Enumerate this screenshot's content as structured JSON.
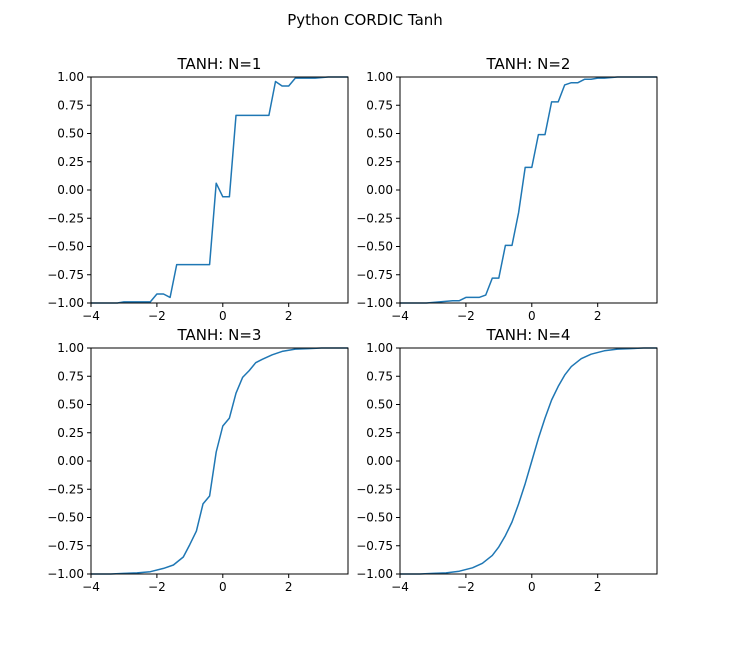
{
  "figure": {
    "title": "Python CORDIC Tanh"
  },
  "colors": {
    "series": "#1f77b4",
    "axes": "#000000",
    "background": "#ffffff"
  },
  "chart_data": [
    {
      "type": "line",
      "title": "TANH: N=1",
      "xlim": [
        -4,
        3.8
      ],
      "ylim": [
        -1,
        1
      ],
      "xticks": [
        -4,
        -2,
        0,
        2
      ],
      "xtick_labels": [
        "−4",
        "−2",
        "0",
        "2"
      ],
      "yticks": [
        1,
        0.75,
        0.5,
        0.25,
        0,
        -0.25,
        -0.5,
        -0.75,
        -1
      ],
      "ytick_labels": [
        "1.00",
        "0.75",
        "0.50",
        "0.25",
        "0.00",
        "−0.25",
        "−0.50",
        "−0.75",
        "−1.00"
      ],
      "grid": false,
      "x": [
        -4.0,
        -3.2,
        -3.0,
        -2.4,
        -2.2,
        -2.0,
        -1.8,
        -1.6,
        -1.4,
        -1.2,
        -0.6,
        -0.4,
        -0.2,
        0.0,
        0.2,
        0.4,
        0.6,
        1.2,
        1.4,
        1.6,
        1.8,
        2.0,
        2.2,
        2.4,
        2.8,
        3.2,
        3.8
      ],
      "y": [
        -1.0,
        -1.0,
        -0.99,
        -0.99,
        -0.99,
        -0.92,
        -0.92,
        -0.95,
        -0.66,
        -0.66,
        -0.66,
        -0.66,
        0.06,
        -0.06,
        -0.06,
        0.66,
        0.66,
        0.66,
        0.66,
        0.96,
        0.92,
        0.92,
        0.99,
        0.99,
        0.99,
        1.0,
        1.0
      ]
    },
    {
      "type": "line",
      "title": "TANH: N=2",
      "xlim": [
        -4,
        3.8
      ],
      "ylim": [
        -1,
        1
      ],
      "xticks": [
        -4,
        -2,
        0,
        2
      ],
      "xtick_labels": [
        "−4",
        "−2",
        "0",
        "2"
      ],
      "yticks": [
        1,
        0.75,
        0.5,
        0.25,
        0,
        -0.25,
        -0.5,
        -0.75,
        -1
      ],
      "ytick_labels": [
        "1.00",
        "0.75",
        "0.50",
        "0.25",
        "0.00",
        "−0.25",
        "−0.50",
        "−0.75",
        "−1.00"
      ],
      "grid": false,
      "x": [
        -4.0,
        -3.2,
        -2.8,
        -2.4,
        -2.2,
        -2.0,
        -1.6,
        -1.4,
        -1.2,
        -1.0,
        -0.8,
        -0.6,
        -0.4,
        -0.2,
        0.0,
        0.2,
        0.4,
        0.6,
        0.8,
        1.0,
        1.2,
        1.4,
        1.6,
        1.8,
        2.0,
        2.2,
        2.6,
        3.2,
        3.8
      ],
      "y": [
        -1.0,
        -1.0,
        -0.99,
        -0.98,
        -0.98,
        -0.95,
        -0.95,
        -0.93,
        -0.78,
        -0.78,
        -0.49,
        -0.49,
        -0.2,
        0.2,
        0.2,
        0.49,
        0.49,
        0.78,
        0.78,
        0.93,
        0.95,
        0.95,
        0.98,
        0.98,
        0.99,
        0.99,
        1.0,
        1.0,
        1.0
      ]
    },
    {
      "type": "line",
      "title": "TANH: N=3",
      "xlim": [
        -4,
        3.8
      ],
      "ylim": [
        -1,
        1
      ],
      "xticks": [
        -4,
        -2,
        0,
        2
      ],
      "xtick_labels": [
        "−4",
        "−2",
        "0",
        "2"
      ],
      "yticks": [
        1,
        0.75,
        0.5,
        0.25,
        0,
        -0.25,
        -0.5,
        -0.75,
        -1
      ],
      "ytick_labels": [
        "1.00",
        "0.75",
        "0.50",
        "0.25",
        "0.00",
        "−0.25",
        "−0.50",
        "−0.75",
        "−1.00"
      ],
      "grid": false,
      "x": [
        -4.0,
        -3.4,
        -3.0,
        -2.6,
        -2.2,
        -1.8,
        -1.5,
        -1.2,
        -1.0,
        -0.8,
        -0.6,
        -0.4,
        -0.2,
        0.0,
        0.2,
        0.4,
        0.6,
        0.8,
        1.0,
        1.2,
        1.5,
        1.8,
        2.2,
        2.6,
        3.0,
        3.4,
        3.8
      ],
      "y": [
        -1.0,
        -1.0,
        -0.995,
        -0.99,
        -0.98,
        -0.95,
        -0.92,
        -0.85,
        -0.74,
        -0.62,
        -0.38,
        -0.31,
        0.08,
        0.31,
        0.38,
        0.6,
        0.74,
        0.8,
        0.87,
        0.9,
        0.94,
        0.97,
        0.99,
        0.995,
        1.0,
        1.0,
        1.0
      ]
    },
    {
      "type": "line",
      "title": "TANH: N=4",
      "xlim": [
        -4,
        3.8
      ],
      "ylim": [
        -1,
        1
      ],
      "xticks": [
        -4,
        -2,
        0,
        2
      ],
      "xtick_labels": [
        "−4",
        "−2",
        "0",
        "2"
      ],
      "yticks": [
        1,
        0.75,
        0.5,
        0.25,
        0,
        -0.25,
        -0.5,
        -0.75,
        -1
      ],
      "ytick_labels": [
        "1.00",
        "0.75",
        "0.50",
        "0.25",
        "0.00",
        "−0.25",
        "−0.50",
        "−0.75",
        "−1.00"
      ],
      "grid": false,
      "x": [
        -4.0,
        -3.4,
        -3.0,
        -2.6,
        -2.2,
        -1.8,
        -1.5,
        -1.2,
        -1.0,
        -0.8,
        -0.6,
        -0.4,
        -0.2,
        0.0,
        0.2,
        0.4,
        0.6,
        0.8,
        1.0,
        1.2,
        1.5,
        1.8,
        2.2,
        2.6,
        3.0,
        3.4,
        3.8
      ],
      "y": [
        -1.0,
        -1.0,
        -0.995,
        -0.99,
        -0.975,
        -0.945,
        -0.905,
        -0.835,
        -0.76,
        -0.66,
        -0.54,
        -0.38,
        -0.2,
        0.0,
        0.2,
        0.38,
        0.54,
        0.66,
        0.76,
        0.835,
        0.905,
        0.945,
        0.975,
        0.99,
        0.995,
        1.0,
        1.0
      ]
    }
  ]
}
